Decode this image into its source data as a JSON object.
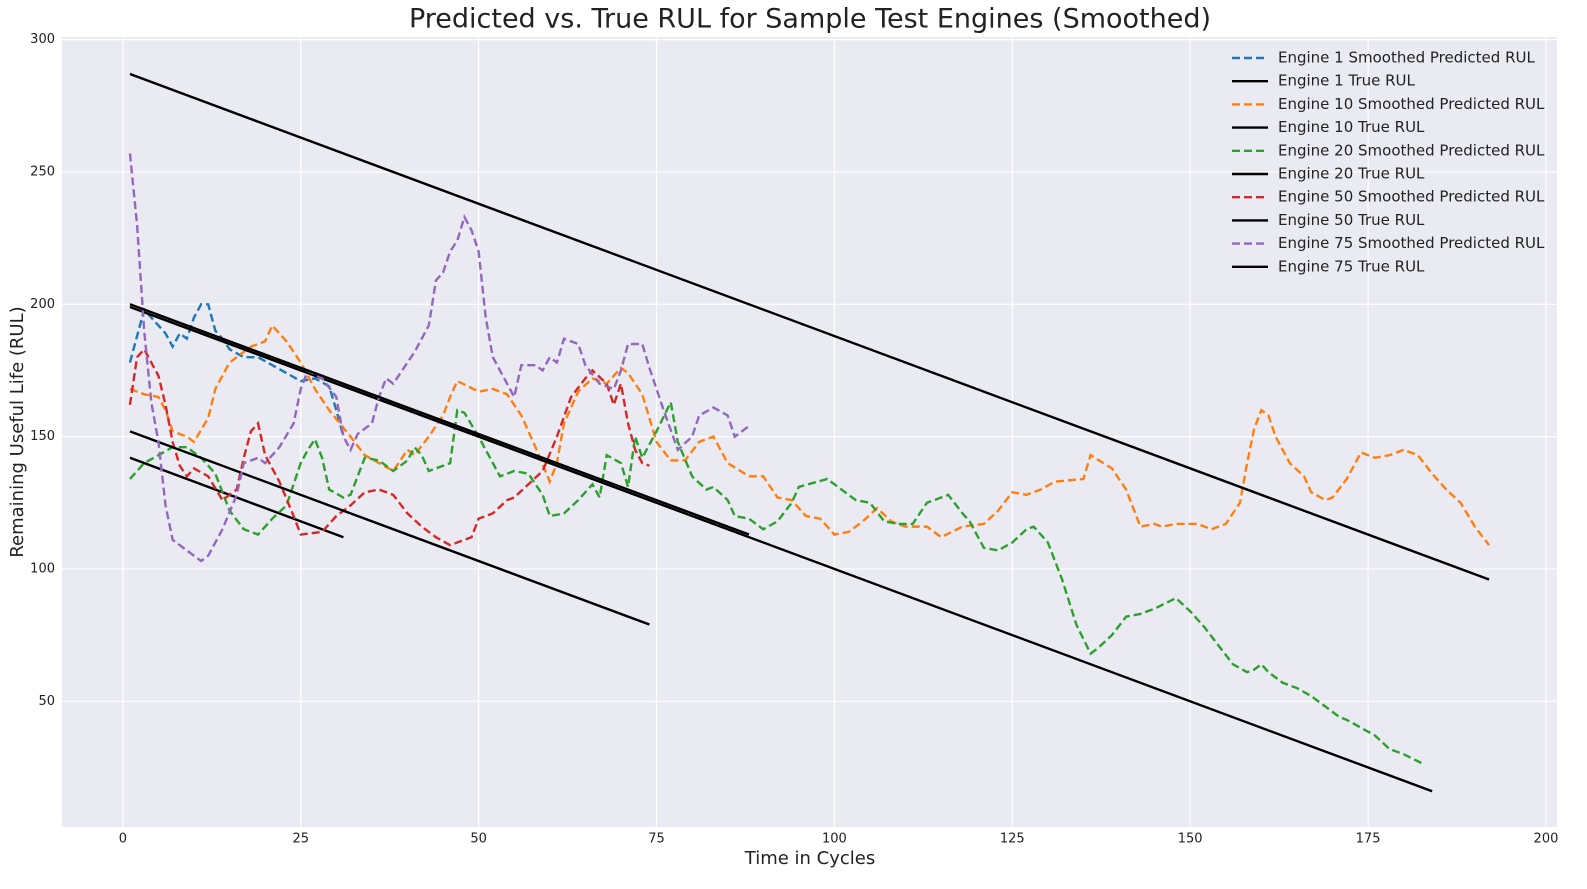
{
  "chart_data": {
    "type": "line",
    "title": "Predicted vs. True RUL for Sample Test Engines (Smoothed)",
    "x_label": "Time in Cycles",
    "y_label": "Remaining Useful Life (RUL)",
    "xlim": [
      -8.55,
      201.55
    ],
    "ylim": [
      2.5,
      301
    ],
    "xticks": [
      0,
      25,
      50,
      75,
      100,
      125,
      150,
      175,
      200
    ],
    "yticks": [
      50,
      100,
      150,
      200,
      250,
      300
    ],
    "grid": true,
    "legend": "upper right",
    "series": [
      {
        "name": "Engine 1 Smoothed Predicted RUL",
        "color": "#1f77b4",
        "linestyle": "dashed",
        "x": [
          1,
          3,
          5,
          6,
          7,
          8,
          9,
          10,
          11,
          12,
          13,
          14,
          15,
          17,
          19,
          21,
          23,
          25,
          27,
          29,
          30,
          31
        ],
        "values": [
          178,
          198,
          192,
          189,
          184,
          189,
          187,
          195,
          200,
          200,
          190,
          187,
          183,
          180,
          180,
          177,
          174,
          171,
          172,
          169,
          160,
          150
        ]
      },
      {
        "name": "Engine 1 True RUL",
        "color": "#000000",
        "linestyle": "solid",
        "x": [
          1,
          31
        ],
        "values": [
          142,
          112
        ]
      },
      {
        "name": "Engine 10 Smoothed Predicted RUL",
        "color": "#ff7f0e",
        "linestyle": "dashed",
        "x": [
          1,
          3,
          5,
          6,
          7,
          9,
          10,
          12,
          13,
          15,
          18,
          20,
          21,
          23,
          25,
          27,
          29,
          32,
          34,
          36,
          38,
          40,
          41,
          43,
          45,
          46,
          47,
          50,
          52,
          54,
          56,
          58,
          60,
          61,
          62,
          64,
          66,
          68,
          70,
          71,
          73,
          75,
          77,
          79,
          81,
          83,
          85,
          88,
          90,
          92,
          94,
          96,
          98,
          100,
          102,
          104,
          106,
          108,
          110,
          113,
          115,
          118,
          121,
          123,
          125,
          127,
          129,
          131,
          135,
          136,
          139,
          141,
          143,
          145,
          146,
          148,
          151,
          153,
          155,
          157,
          158,
          159,
          160,
          161,
          162,
          164,
          166,
          167,
          169,
          170,
          172,
          174,
          176,
          178,
          180,
          182,
          184,
          186,
          188,
          190,
          192
        ],
        "values": [
          168,
          166,
          165,
          160,
          152,
          150,
          148,
          157,
          168,
          178,
          184,
          186,
          192,
          186,
          178,
          168,
          160,
          150,
          143,
          140,
          137,
          145,
          143,
          150,
          158,
          165,
          171,
          167,
          168,
          166,
          158,
          146,
          133,
          140,
          155,
          167,
          172,
          170,
          176,
          174,
          166,
          148,
          141,
          141,
          148,
          150,
          140,
          135,
          135,
          127,
          126,
          120,
          119,
          113,
          114,
          118,
          123,
          118,
          116,
          116,
          112,
          116,
          117,
          122,
          129,
          128,
          130,
          133,
          134,
          143,
          138,
          130,
          116,
          117,
          116,
          117,
          117,
          115,
          117,
          125,
          140,
          153,
          160,
          158,
          150,
          140,
          135,
          129,
          126,
          127,
          134,
          144,
          142,
          143,
          145,
          143,
          136,
          130,
          125,
          116,
          109
        ]
      },
      {
        "name": "Engine 10 True RUL",
        "color": "#000000",
        "linestyle": "solid",
        "x": [
          1,
          192
        ],
        "values": [
          287,
          96
        ]
      },
      {
        "name": "Engine 20 Smoothed Predicted RUL",
        "color": "#2ca02c",
        "linestyle": "dashed",
        "x": [
          1,
          3,
          5,
          7,
          9,
          11,
          13,
          15,
          17,
          19,
          21,
          23,
          25,
          26,
          27,
          28,
          29,
          31,
          32,
          33,
          34,
          36,
          38,
          40,
          41,
          42,
          43,
          46,
          47,
          48,
          50,
          52,
          53,
          55,
          57,
          59,
          60,
          62,
          64,
          66,
          67,
          68,
          70,
          71,
          72,
          73,
          75,
          77,
          78,
          80,
          82,
          83,
          85,
          86,
          88,
          90,
          92,
          94,
          95,
          99,
          101,
          103,
          105,
          107,
          109,
          111,
          113,
          116,
          118,
          119,
          121,
          123,
          125,
          127,
          128,
          130,
          132,
          134,
          136,
          137,
          139,
          141,
          143,
          145,
          148,
          150,
          152,
          154,
          156,
          158,
          159,
          160,
          161,
          163,
          165,
          167,
          169,
          171,
          172,
          174,
          176,
          178,
          180,
          183
        ],
        "values": [
          134,
          140,
          143,
          146,
          146,
          142,
          136,
          122,
          115,
          113,
          119,
          124,
          140,
          145,
          149,
          142,
          130,
          127,
          128,
          135,
          142,
          141,
          137,
          141,
          146,
          143,
          137,
          140,
          160,
          159,
          150,
          140,
          135,
          137,
          136,
          128,
          120,
          121,
          126,
          132,
          127,
          143,
          140,
          131,
          150,
          142,
          152,
          163,
          148,
          135,
          130,
          131,
          126,
          120,
          119,
          115,
          118,
          125,
          131,
          134,
          130,
          126,
          125,
          118,
          117,
          117,
          125,
          128,
          121,
          118,
          108,
          107,
          110,
          115,
          116,
          110,
          96,
          79,
          68,
          70,
          75,
          82,
          83,
          85,
          89,
          84,
          78,
          71,
          64,
          61,
          62,
          64,
          61,
          57,
          55,
          52,
          48,
          44,
          43,
          40,
          37,
          32,
          30,
          26
        ]
      },
      {
        "name": "Engine 20 True RUL",
        "color": "#000000",
        "linestyle": "solid",
        "x": [
          1,
          184
        ],
        "values": [
          199,
          16
        ]
      },
      {
        "name": "Engine 50 Smoothed Predicted RUL",
        "color": "#d62728",
        "linestyle": "dashed",
        "x": [
          1,
          2,
          3,
          5,
          6,
          7,
          8,
          9,
          10,
          12,
          14,
          16,
          17,
          18,
          19,
          20,
          22,
          24,
          25,
          28,
          30,
          32,
          34,
          36,
          38,
          40,
          42,
          44,
          46,
          48,
          49,
          50,
          52,
          54,
          55,
          57,
          59,
          61,
          63,
          65,
          66,
          68,
          69,
          70,
          71,
          72,
          73,
          74
        ],
        "values": [
          162,
          180,
          183,
          173,
          162,
          148,
          139,
          135,
          138,
          135,
          126,
          130,
          142,
          152,
          155,
          143,
          133,
          120,
          113,
          114,
          120,
          124,
          129,
          130,
          128,
          121,
          116,
          112,
          109,
          111,
          112,
          119,
          121,
          126,
          127,
          132,
          137,
          150,
          165,
          172,
          175,
          170,
          162,
          170,
          155,
          145,
          140,
          139
        ]
      },
      {
        "name": "Engine 50 True RUL",
        "color": "#000000",
        "linestyle": "solid",
        "x": [
          1,
          74
        ],
        "values": [
          152,
          79
        ]
      },
      {
        "name": "Engine 75 Smoothed Predicted RUL",
        "color": "#9467bd",
        "linestyle": "dashed",
        "x": [
          1,
          2,
          3,
          4,
          5,
          6,
          7,
          9,
          11,
          12,
          14,
          16,
          17,
          19,
          20,
          22,
          24,
          25,
          26,
          28,
          30,
          31,
          32,
          33,
          35,
          36,
          37,
          38,
          40,
          41,
          43,
          44,
          45,
          46,
          47,
          48,
          49,
          50,
          51,
          52,
          54,
          55,
          56,
          58,
          59,
          60,
          61,
          62,
          64,
          65,
          67,
          69,
          70,
          71,
          73,
          74,
          76,
          78,
          80,
          81,
          83,
          85,
          86,
          87,
          88
        ],
        "values": [
          257,
          230,
          190,
          163,
          148,
          124,
          111,
          107,
          103,
          105,
          115,
          128,
          140,
          142,
          140,
          146,
          155,
          168,
          175,
          172,
          165,
          150,
          145,
          151,
          155,
          165,
          172,
          170,
          178,
          182,
          192,
          209,
          212,
          220,
          224,
          233,
          228,
          220,
          195,
          180,
          170,
          165,
          177,
          177,
          175,
          180,
          178,
          187,
          185,
          177,
          170,
          168,
          175,
          185,
          185,
          176,
          160,
          145,
          150,
          158,
          161,
          158,
          150,
          152,
          154
        ]
      },
      {
        "name": "Engine 75 True RUL",
        "color": "#000000",
        "linestyle": "solid",
        "x": [
          1,
          88
        ],
        "values": [
          200,
          113
        ]
      }
    ]
  }
}
